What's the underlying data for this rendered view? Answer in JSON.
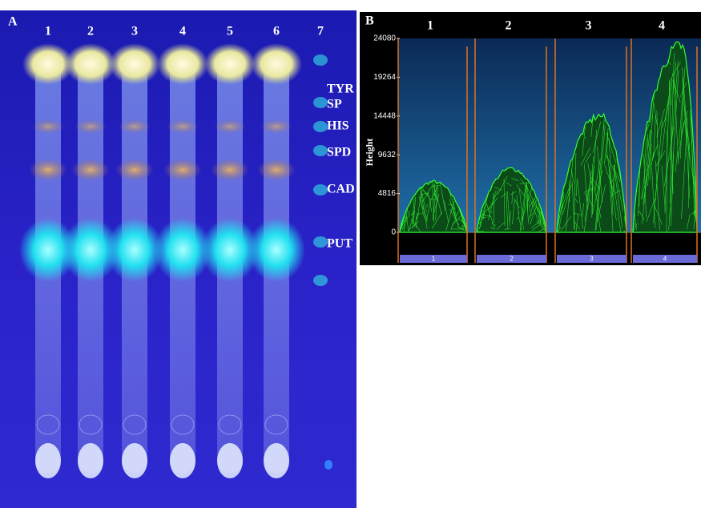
{
  "panel_a": {
    "label": "A",
    "lanes": [
      "1",
      "2",
      "3",
      "4",
      "5",
      "6",
      "7"
    ],
    "bands": [
      "TYR",
      "SP",
      "HIS",
      "SPD",
      "CAD",
      "PUT"
    ]
  },
  "chart_data": {
    "type": "area",
    "label": "B",
    "y_label": "Height",
    "categories": [
      "1",
      "2",
      "3",
      "4"
    ],
    "track_labels": [
      "1",
      "2",
      "3",
      "4"
    ],
    "values": [
      6500,
      8200,
      15000,
      24000
    ],
    "color": "#33ff33",
    "ylim": [
      0,
      24080
    ],
    "yticks": [
      0,
      4816,
      9632,
      14448,
      19264,
      24080
    ]
  }
}
